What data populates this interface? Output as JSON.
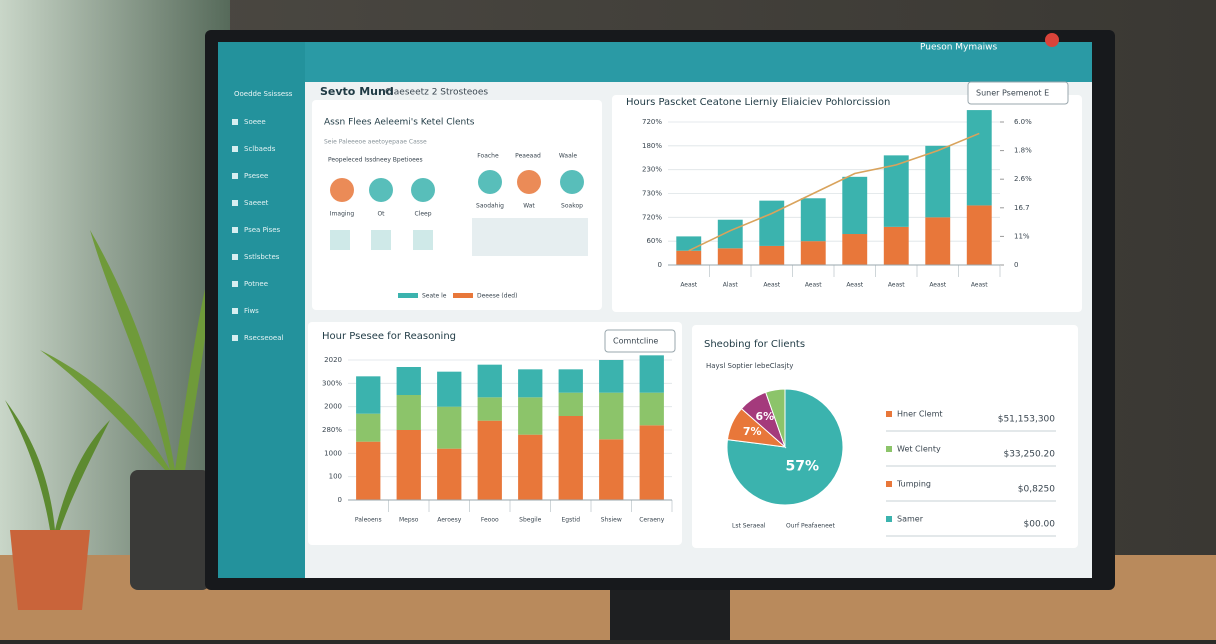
{
  "header": {
    "app": "Sevto Mund",
    "crumb": "Claeseetz 2 Strosteoes",
    "user": "Pueson Mymaiws"
  },
  "sidebar": {
    "logo": "Ooedde Ssissess",
    "items": [
      "Soeee",
      "Sclbaeds",
      "Psesee",
      "Saeeet",
      "Psea Pises",
      "Sstlsbctes",
      "Potnee",
      "Fiws",
      "Rsecseoeal"
    ]
  },
  "overview": {
    "title": "Assn Flees Aeleemi's Ketel Clents",
    "subtitle": "Seie Paleeeoe aeetoyepaae Casse",
    "section": "Peopeleced Issdneey Bpetioees",
    "columns": [
      "Foache",
      "Peaeaad",
      "Waale"
    ],
    "icons": [
      "Imaging",
      "Ot",
      "Cleep",
      "Saodahig",
      "Wat",
      "Soakop"
    ],
    "legend": [
      "Seate le",
      "Deeese (ded)"
    ]
  },
  "chart_data": [
    {
      "type": "bar",
      "stacked": true,
      "title": "Hours Pascket Ceatone Lierniy Eliaiciev Pohlorcission",
      "control": "Suner Psemenot E",
      "categories": [
        "Aeast",
        "Alast",
        "Aeast",
        "Aeast",
        "Aeast",
        "Aeast",
        "Aeast",
        "Aeast"
      ],
      "series": [
        {
          "name": "Orange",
          "color": "#e8773a",
          "values": [
            0.6,
            0.7,
            0.8,
            1.0,
            1.3,
            1.6,
            2.0,
            2.5
          ]
        },
        {
          "name": "Teal",
          "color": "#3bb3ae",
          "values": [
            0.6,
            1.2,
            1.9,
            1.8,
            2.4,
            3.0,
            3.0,
            4.0
          ]
        },
        {
          "name": "Trend",
          "color": "#d9a35c",
          "type": "line",
          "axis": "y2",
          "values": [
            0.5,
            1.2,
            1.8,
            2.5,
            3.2,
            3.5,
            4.0,
            4.6
          ]
        }
      ],
      "ylim": [
        0,
        6
      ],
      "yticks": [
        {
          "value": 0,
          "label": "0"
        },
        {
          "value": 1,
          "label": "60%"
        },
        {
          "value": 2,
          "label": "720%"
        },
        {
          "value": 3,
          "label": "730%"
        },
        {
          "value": 4,
          "label": "230%"
        },
        {
          "value": 5,
          "label": "180%"
        },
        {
          "value": 6,
          "label": "720%"
        }
      ],
      "y2lim": [
        0,
        5
      ],
      "y2ticks": [
        {
          "value": 0,
          "label": "0"
        },
        {
          "value": 1,
          "label": "11%"
        },
        {
          "value": 2,
          "label": "16.7"
        },
        {
          "value": 3,
          "label": "2.6%"
        },
        {
          "value": 4,
          "label": "1.8%"
        },
        {
          "value": 5,
          "label": "6.0%"
        }
      ],
      "grid": true
    },
    {
      "type": "bar",
      "stacked": true,
      "title": "Hour Psesee for Reasoning",
      "control": "Comntcline",
      "categories": [
        "Paleoens",
        "Mepso",
        "Aeroesy",
        "Feooo",
        "Sbegile",
        "Egstid",
        "Shsiew",
        "Ceraeny"
      ],
      "series": [
        {
          "name": "Orange",
          "color": "#e8773a",
          "values": [
            2.5,
            3.0,
            2.2,
            3.4,
            2.8,
            3.6,
            2.6,
            3.2
          ]
        },
        {
          "name": "Green",
          "color": "#8cc46a",
          "values": [
            1.2,
            1.5,
            1.8,
            1.0,
            1.6,
            1.0,
            2.0,
            1.4
          ]
        },
        {
          "name": "Teal",
          "color": "#3bb3ae",
          "values": [
            1.6,
            1.2,
            1.5,
            1.4,
            1.2,
            1.0,
            1.4,
            1.6
          ]
        }
      ],
      "ylim": [
        0,
        6
      ],
      "yticks": [
        {
          "value": 0,
          "label": "0"
        },
        {
          "value": 1,
          "label": "100"
        },
        {
          "value": 2,
          "label": "1000"
        },
        {
          "value": 3,
          "label": "280%"
        },
        {
          "value": 4,
          "label": "2000"
        },
        {
          "value": 5,
          "label": "300%"
        },
        {
          "value": 6,
          "label": "2020"
        }
      ],
      "grid": true
    },
    {
      "type": "pie",
      "title": "Sheobing for Clients",
      "subtitle": "Haysl Soptier lebeClasjty",
      "values": [
        57,
        7,
        6,
        4
      ],
      "value_labels": [
        "57%",
        "7%",
        "6%",
        null
      ],
      "colors": [
        "#3bb3ae",
        "#e8773a",
        "#a43a7c",
        "#8cc46a"
      ],
      "legend_items": [
        {
          "name": "Hner Clemt",
          "amount": "$51,153,300",
          "color": "#e8773a"
        },
        {
          "name": "Wet Clenty",
          "amount": "$33,250.20",
          "color": "#8cc46a"
        },
        {
          "name": "Tumping",
          "amount": "$0,8250",
          "color": "#e8773a"
        },
        {
          "name": "Samer",
          "amount": "$00.00",
          "color": "#3bb3ae"
        }
      ],
      "footer": [
        "Lst Seraeal",
        "Ourf Peafaeneet"
      ]
    }
  ]
}
